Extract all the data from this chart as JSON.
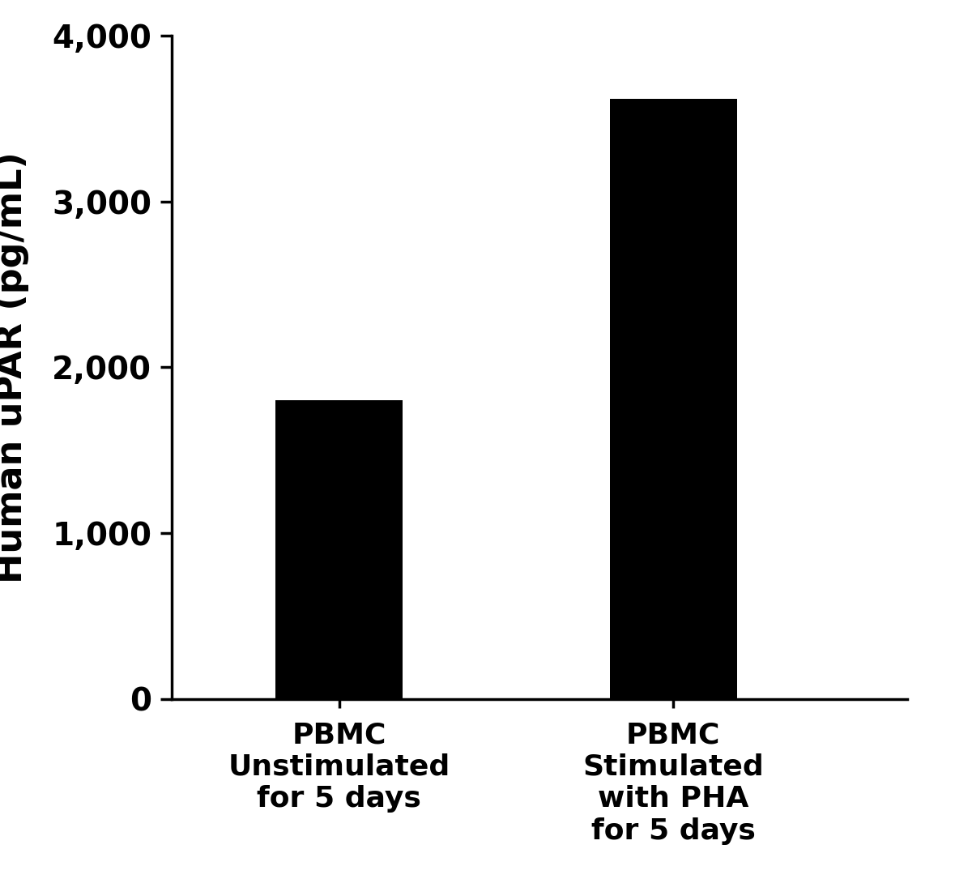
{
  "categories": [
    "PBMC\nUnstimulated\nfor 5 days",
    "PBMC\nStimulated\nwith PHA\nfor 5 days"
  ],
  "values": [
    1800,
    3620
  ],
  "bar_colors": [
    "#000000",
    "#000000"
  ],
  "ylabel": "Human uPAR (pg/mL)",
  "ylim": [
    0,
    4000
  ],
  "yticks": [
    0,
    1000,
    2000,
    3000,
    4000
  ],
  "background_color": "#ffffff",
  "bar_width": 0.38,
  "ylabel_fontsize": 32,
  "tick_fontsize": 28,
  "xlabel_fontsize": 26,
  "spine_linewidth": 2.5
}
